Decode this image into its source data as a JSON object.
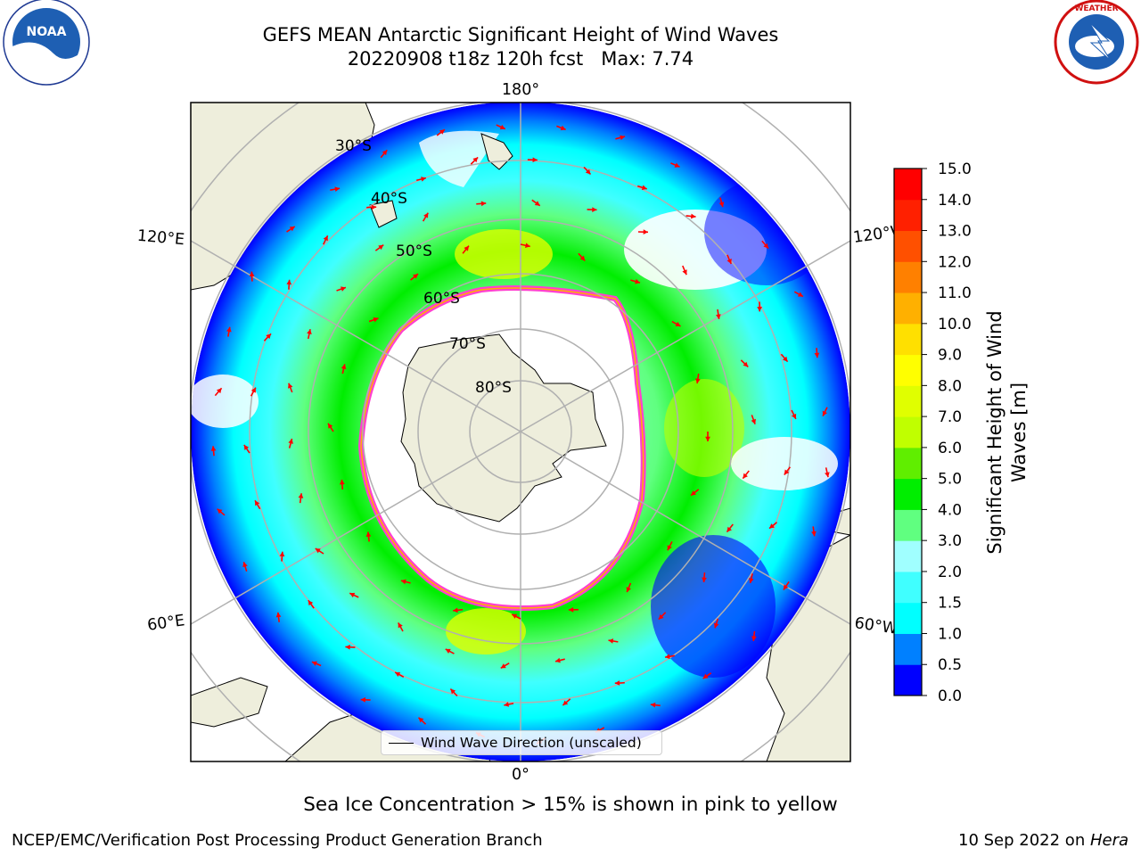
{
  "title": {
    "line1": "GEFS MEAN Antarctic Significant Height of Wind Waves",
    "line2": "20220908 t18z 120h fcst   Max: 7.74"
  },
  "map": {
    "projection": "south-polar-stereographic",
    "longitude_labels": [
      "180°",
      "120°E",
      "120°W",
      "60°E",
      "60°W",
      "0°"
    ],
    "latitude_labels": [
      "30°S",
      "40°S",
      "50°S",
      "60°S",
      "70°S",
      "80°S"
    ],
    "land_color": "#eeeedc",
    "sea_ice_color": "#ff40d0",
    "arrow_color": "#ff0000",
    "legend_label": "Wind Wave Direction (unscaled)"
  },
  "colorbar": {
    "label": "Significant Height of Wind Waves [m]",
    "ticks": [
      "0.0",
      "0.5",
      "1.0",
      "1.5",
      "2.0",
      "3.0",
      "4.0",
      "5.0",
      "6.0",
      "7.0",
      "8.0",
      "9.0",
      "10.0",
      "11.0",
      "12.0",
      "13.0",
      "14.0",
      "15.0"
    ],
    "colors": [
      "#0000ff",
      "#0080ff",
      "#00ffff",
      "#40ffff",
      "#a0ffff",
      "#60ff80",
      "#00ee00",
      "#60ee00",
      "#c0ff00",
      "#e0ff00",
      "#ffff00",
      "#ffe000",
      "#ffb000",
      "#ff8000",
      "#ff5000",
      "#ff2000",
      "#ff0000"
    ]
  },
  "caption": "Sea Ice Concentration > 15% is shown in pink to yellow",
  "footer": {
    "left": "NCEP/EMC/Verification Post Processing Product Generation Branch",
    "right_prefix": "10 Sep 2022 on ",
    "right_host": "Hera"
  },
  "logos": {
    "left": "NOAA",
    "left_ring": "NATIONAL OCEANIC AND ATMOSPHERIC ADMINISTRATION · U.S. DEPARTMENT OF COMMERCE",
    "right_ring": "NATIONAL WEATHER SERVICE"
  }
}
